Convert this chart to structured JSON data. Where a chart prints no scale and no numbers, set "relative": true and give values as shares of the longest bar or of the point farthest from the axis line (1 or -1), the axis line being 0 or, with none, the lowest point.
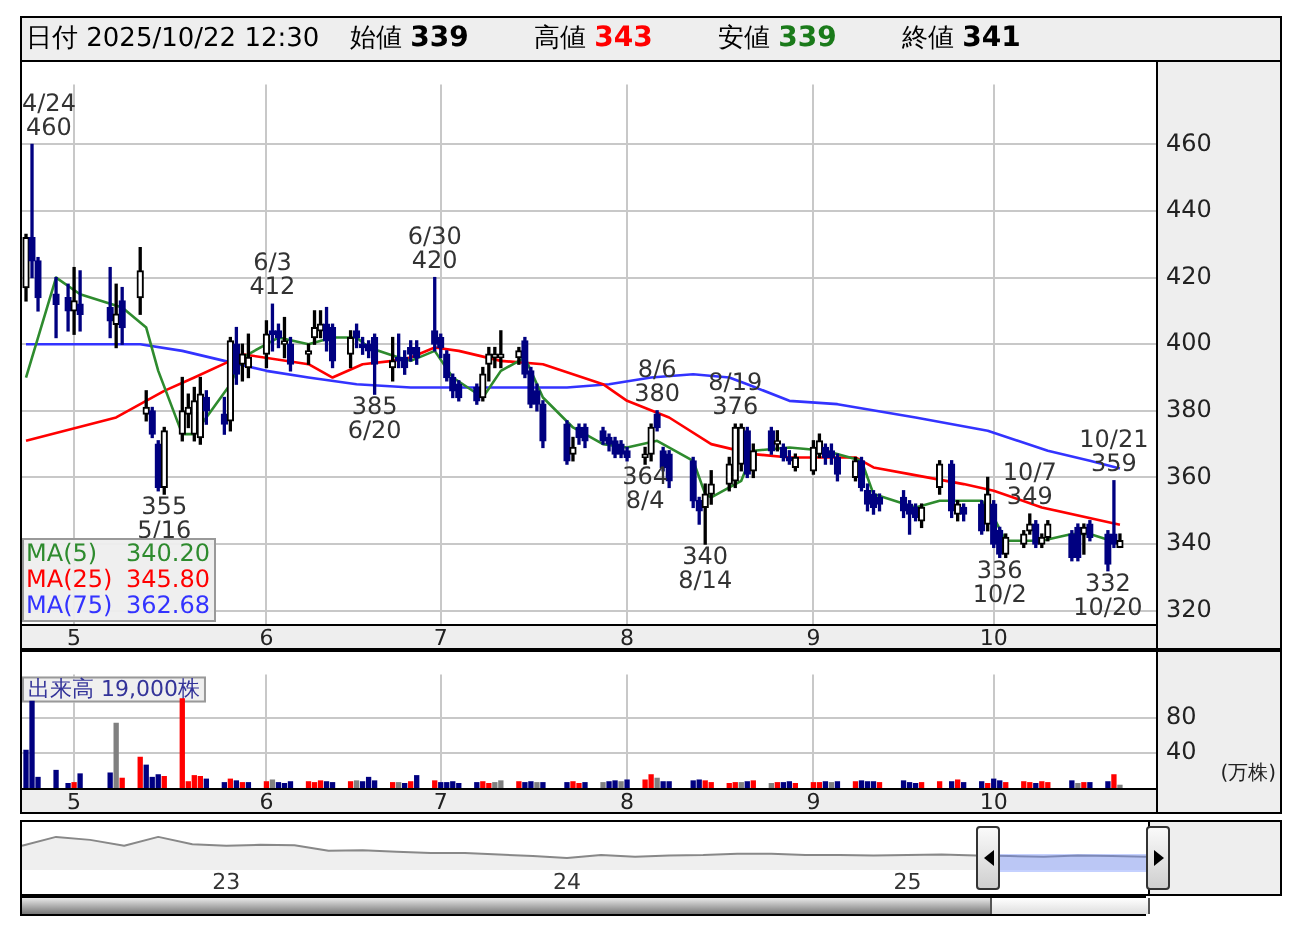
{
  "chart_data": [
    {
      "type": "candlestick",
      "x": [
        "2025-04-23",
        "2025-04-24",
        "2025-04-25",
        "2025-04-28",
        "2025-04-30",
        "2025-05-01",
        "2025-05-02",
        "2025-05-07",
        "2025-05-08",
        "2025-05-09",
        "2025-05-12",
        "2025-05-13",
        "2025-05-14",
        "2025-05-15",
        "2025-05-16",
        "2025-05-19",
        "2025-05-20",
        "2025-05-21",
        "2025-05-22",
        "2025-05-23",
        "2025-05-26",
        "2025-05-27",
        "2025-05-28",
        "2025-05-29",
        "2025-05-30",
        "2025-06-02",
        "2025-06-03",
        "2025-06-04",
        "2025-06-05",
        "2025-06-06",
        "2025-06-09",
        "2025-06-10",
        "2025-06-11",
        "2025-06-12",
        "2025-06-13",
        "2025-06-16",
        "2025-06-17",
        "2025-06-18",
        "2025-06-19",
        "2025-06-20",
        "2025-06-23",
        "2025-06-24",
        "2025-06-25",
        "2025-06-26",
        "2025-06-27",
        "2025-06-30",
        "2025-07-01",
        "2025-07-02",
        "2025-07-03",
        "2025-07-04",
        "2025-07-07",
        "2025-07-08",
        "2025-07-09",
        "2025-07-10",
        "2025-07-11",
        "2025-07-14",
        "2025-07-15",
        "2025-07-16",
        "2025-07-17",
        "2025-07-18",
        "2025-07-22",
        "2025-07-23",
        "2025-07-24",
        "2025-07-25",
        "2025-07-28",
        "2025-07-29",
        "2025-07-30",
        "2025-07-31",
        "2025-08-01",
        "2025-08-04",
        "2025-08-05",
        "2025-08-06",
        "2025-08-07",
        "2025-08-08",
        "2025-08-12",
        "2025-08-13",
        "2025-08-14",
        "2025-08-15",
        "2025-08-18",
        "2025-08-19",
        "2025-08-20",
        "2025-08-21",
        "2025-08-22",
        "2025-08-25",
        "2025-08-26",
        "2025-08-27",
        "2025-08-28",
        "2025-08-29",
        "2025-09-01",
        "2025-09-02",
        "2025-09-03",
        "2025-09-04",
        "2025-09-05",
        "2025-09-08",
        "2025-09-09",
        "2025-09-10",
        "2025-09-11",
        "2025-09-12",
        "2025-09-16",
        "2025-09-17",
        "2025-09-18",
        "2025-09-19",
        "2025-09-22",
        "2025-09-24",
        "2025-09-25",
        "2025-09-26",
        "2025-09-29",
        "2025-09-30",
        "2025-10-01",
        "2025-10-02",
        "2025-10-03",
        "2025-10-06",
        "2025-10-07",
        "2025-10-08",
        "2025-10-09",
        "2025-10-10",
        "2025-10-14",
        "2025-10-15",
        "2025-10-16",
        "2025-10-17",
        "2025-10-20",
        "2025-10-21",
        "2025-10-22"
      ],
      "ohlc": [
        [
          417,
          433,
          413,
          432
        ],
        [
          432,
          460,
          420,
          425
        ],
        [
          425,
          426,
          410,
          414
        ],
        [
          415,
          420,
          402,
          412
        ],
        [
          414,
          418,
          404,
          410
        ],
        [
          410,
          423,
          403,
          413
        ],
        [
          412,
          422,
          404,
          409
        ],
        [
          411,
          423,
          402,
          407
        ],
        [
          406,
          418,
          399,
          409
        ],
        [
          413,
          417,
          400,
          405
        ],
        [
          414,
          429,
          409,
          422
        ],
        [
          379,
          386,
          377,
          381
        ],
        [
          380,
          381,
          372,
          373
        ],
        [
          370,
          371,
          356,
          357
        ],
        [
          357,
          375,
          355,
          374
        ],
        [
          373,
          390,
          371,
          380
        ],
        [
          379,
          385,
          375,
          381
        ],
        [
          373,
          387,
          371,
          383
        ],
        [
          372,
          390,
          370,
          385
        ],
        [
          384,
          386,
          376,
          380
        ],
        [
          379,
          384,
          373,
          376
        ],
        [
          377,
          402,
          374,
          401
        ],
        [
          400,
          405,
          388,
          391
        ],
        [
          394,
          400,
          389,
          397
        ],
        [
          393,
          403,
          390,
          396
        ],
        [
          397,
          407,
          393,
          403
        ],
        [
          404,
          412,
          398,
          403
        ],
        [
          404,
          406,
          399,
          402
        ],
        [
          400,
          408,
          396,
          401
        ],
        [
          400,
          402,
          392,
          394
        ],
        [
          397,
          400,
          394,
          398
        ],
        [
          402,
          410,
          400,
          405
        ],
        [
          404,
          410,
          402,
          406
        ],
        [
          406,
          411,
          398,
          401
        ],
        [
          405,
          406,
          393,
          395
        ],
        [
          397,
          404,
          393,
          402
        ],
        [
          404,
          406,
          399,
          402
        ],
        [
          400,
          402,
          397,
          399
        ],
        [
          400,
          401,
          396,
          398
        ],
        [
          402,
          403,
          385,
          394
        ],
        [
          393,
          402,
          389,
          395
        ],
        [
          396,
          403,
          393,
          395
        ],
        [
          396,
          398,
          391,
          393
        ],
        [
          399,
          401,
          395,
          397
        ],
        [
          399,
          401,
          394,
          396
        ],
        [
          404,
          420,
          398,
          400
        ],
        [
          402,
          403,
          396,
          399
        ],
        [
          397,
          398,
          389,
          390
        ],
        [
          390,
          391,
          384,
          386
        ],
        [
          388,
          389,
          383,
          384
        ],
        [
          387,
          388,
          382,
          383
        ],
        [
          384,
          393,
          383,
          391
        ],
        [
          394,
          399,
          389,
          397
        ],
        [
          396,
          399,
          393,
          397
        ],
        [
          396,
          404,
          393,
          397
        ],
        [
          396,
          399,
          394,
          398
        ],
        [
          401,
          402,
          390,
          391
        ],
        [
          392,
          393,
          381,
          382
        ],
        [
          386,
          388,
          380,
          382
        ],
        [
          382,
          383,
          369,
          371
        ],
        [
          376,
          377,
          364,
          365
        ],
        [
          367,
          372,
          365,
          369
        ],
        [
          375,
          376,
          370,
          372
        ],
        [
          375,
          376,
          369,
          371
        ],
        [
          374,
          375,
          370,
          371
        ],
        [
          372,
          373,
          368,
          370
        ],
        [
          371,
          372,
          366,
          367
        ],
        [
          370,
          371,
          366,
          367
        ],
        [
          368,
          369,
          365,
          366
        ],
        [
          366,
          369,
          364,
          367
        ],
        [
          367,
          376,
          365,
          375
        ],
        [
          379,
          380,
          374,
          375
        ],
        [
          368,
          369,
          362,
          363
        ],
        [
          367,
          368,
          357,
          359
        ],
        [
          365,
          366,
          351,
          353
        ],
        [
          353,
          354,
          346,
          350
        ],
        [
          351,
          358,
          340,
          355
        ],
        [
          355,
          362,
          352,
          358
        ],
        [
          358,
          366,
          356,
          364
        ],
        [
          359,
          376,
          357,
          375
        ],
        [
          364,
          376,
          362,
          375
        ],
        [
          374,
          375,
          360,
          361
        ],
        [
          362,
          370,
          360,
          368
        ],
        [
          374,
          375,
          367,
          368
        ],
        [
          370,
          374,
          368,
          371
        ],
        [
          369,
          370,
          365,
          366
        ],
        [
          366,
          368,
          364,
          365
        ],
        [
          363,
          367,
          362,
          366
        ],
        [
          362,
          371,
          361,
          369
        ],
        [
          367,
          373,
          366,
          371
        ],
        [
          369,
          370,
          364,
          366
        ],
        [
          368,
          370,
          364,
          366
        ],
        [
          366,
          367,
          359,
          361
        ],
        [
          360,
          366,
          359,
          365
        ],
        [
          365,
          366,
          356,
          357
        ],
        [
          356,
          358,
          350,
          352
        ],
        [
          355,
          356,
          349,
          351
        ],
        [
          354,
          355,
          350,
          352
        ],
        [
          354,
          356,
          348,
          350
        ],
        [
          352,
          353,
          343,
          349
        ],
        [
          351,
          352,
          347,
          348
        ],
        [
          347,
          352,
          345,
          351
        ],
        [
          357,
          365,
          355,
          364
        ],
        [
          364,
          365,
          348,
          350
        ],
        [
          349,
          353,
          347,
          352
        ],
        [
          351,
          352,
          347,
          349
        ],
        [
          352,
          353,
          343,
          344
        ],
        [
          346,
          360,
          344,
          355
        ],
        [
          352,
          353,
          339,
          340
        ],
        [
          344,
          345,
          336,
          337
        ],
        [
          337,
          343,
          336,
          342
        ],
        [
          340,
          344,
          339,
          343
        ],
        [
          344,
          349,
          343,
          346
        ],
        [
          346,
          347,
          339,
          340
        ],
        [
          340,
          343,
          339,
          342
        ],
        [
          342,
          347,
          341,
          346
        ],
        [
          343,
          344,
          335,
          336
        ],
        [
          345,
          346,
          335,
          336
        ],
        [
          343,
          346,
          337,
          345
        ],
        [
          346,
          347,
          341,
          342
        ],
        [
          343,
          344,
          332,
          334
        ],
        [
          343,
          359,
          339,
          340
        ],
        [
          339,
          343,
          339,
          341
        ]
      ],
      "series": [
        {
          "type": "line",
          "name": "MA(5) 340.20",
          "color": "#2e8b2e",
          "x": [
            "2025-04-23",
            "2025-04-28",
            "2025-05-02",
            "2025-05-09",
            "2025-05-13",
            "2025-05-15",
            "2025-05-19",
            "2025-05-21",
            "2025-05-23",
            "2025-05-27",
            "2025-05-29",
            "2025-06-04",
            "2025-06-09",
            "2025-06-13",
            "2025-06-17",
            "2025-06-19",
            "2025-06-24",
            "2025-06-26",
            "2025-06-30",
            "2025-07-03",
            "2025-07-08",
            "2025-07-11",
            "2025-07-15",
            "2025-07-18",
            "2025-07-23",
            "2025-07-28",
            "2025-08-01",
            "2025-08-06",
            "2025-08-12",
            "2025-08-14",
            "2025-08-15",
            "2025-08-20",
            "2025-08-22",
            "2025-08-28",
            "2025-09-03",
            "2025-09-09",
            "2025-09-11",
            "2025-09-18",
            "2025-09-22",
            "2025-09-29",
            "2025-10-01",
            "2025-10-03",
            "2025-10-09",
            "2025-10-14",
            "2025-10-17",
            "2025-10-22"
          ],
          "values": [
            390,
            420,
            415,
            411,
            405,
            392,
            373,
            373,
            378,
            388,
            396,
            402,
            400,
            402,
            402,
            399,
            396,
            395,
            398,
            390,
            384,
            392,
            396,
            384,
            375,
            370,
            369,
            371,
            365,
            355,
            354,
            359,
            368,
            369,
            368,
            365,
            355,
            351,
            353,
            353,
            348,
            341,
            341,
            343,
            343,
            340.2
          ]
        },
        {
          "type": "line",
          "name": "MA(25) 345.80",
          "color": "#ff0000",
          "x": [
            "2025-04-23",
            "2025-05-08",
            "2025-05-16",
            "2025-05-21",
            "2025-05-27",
            "2025-05-29",
            "2025-06-09",
            "2025-06-13",
            "2025-06-18",
            "2025-06-23",
            "2025-06-26",
            "2025-06-30",
            "2025-07-04",
            "2025-07-11",
            "2025-07-18",
            "2025-07-28",
            "2025-08-01",
            "2025-08-08",
            "2025-08-15",
            "2025-08-22",
            "2025-08-28",
            "2025-09-08",
            "2025-09-11",
            "2025-09-17",
            "2025-09-26",
            "2025-10-01",
            "2025-10-09",
            "2025-10-22"
          ],
          "values": [
            371,
            378,
            386,
            390,
            395,
            397,
            394,
            390,
            394,
            395,
            396,
            399,
            398,
            395,
            394,
            388,
            383,
            378,
            370,
            367,
            366,
            366,
            363,
            361,
            358,
            356,
            351,
            345.8
          ]
        },
        {
          "type": "line",
          "name": "MA(75) 362.68",
          "color": "#3333ff",
          "x": [
            "2025-04-23",
            "2025-05-12",
            "2025-05-19",
            "2025-05-26",
            "2025-06-02",
            "2025-06-09",
            "2025-06-17",
            "2025-06-26",
            "2025-07-07",
            "2025-07-22",
            "2025-07-29",
            "2025-08-05",
            "2025-08-12",
            "2025-08-18",
            "2025-08-21",
            "2025-08-28",
            "2025-09-05",
            "2025-09-18",
            "2025-09-30",
            "2025-10-10",
            "2025-10-17",
            "2025-10-22"
          ],
          "values": [
            400,
            400,
            398,
            395,
            392,
            390,
            388,
            387,
            387,
            387,
            388,
            390,
            391,
            390,
            388,
            383,
            382,
            378,
            374,
            368,
            365,
            362.7
          ]
        }
      ],
      "xlim": [
        "2025-04-22",
        "2025-10-28"
      ],
      "xticks": [
        {
          "value": "2025-05-01",
          "label": "5"
        },
        {
          "value": "2025-06-02",
          "label": "6"
        },
        {
          "value": "2025-07-01",
          "label": "7"
        },
        {
          "value": "2025-08-01",
          "label": "8"
        },
        {
          "value": "2025-09-01",
          "label": "9"
        },
        {
          "value": "2025-10-01",
          "label": "10"
        }
      ],
      "ylim": [
        316,
        478
      ],
      "yticks": [
        320,
        340,
        360,
        380,
        400,
        420,
        440,
        460
      ],
      "grid": true,
      "legend": "bottom left",
      "annotations": [
        "日付 2025/10/22 12:30",
        "始値 339",
        "高値 343",
        "安値 339",
        "終値 341",
        {
          "text": "4/24\n460",
          "x": "2025-04-24",
          "y": 460
        },
        {
          "text": "355\n5/16",
          "x": "2025-05-16",
          "y": 355
        },
        {
          "text": "6/3\n412",
          "x": "2025-06-03",
          "y": 412
        },
        {
          "text": "385\n6/20",
          "x": "2025-06-20",
          "y": 385
        },
        {
          "text": "6/30\n420",
          "x": "2025-06-30",
          "y": 420
        },
        {
          "text": "364\n8/4",
          "x": "2025-08-04",
          "y": 364
        },
        {
          "text": "8/6\n380",
          "x": "2025-08-06",
          "y": 380
        },
        {
          "text": "340\n8/14",
          "x": "2025-08-14",
          "y": 340
        },
        {
          "text": "8/19\n376",
          "x": "2025-08-19",
          "y": 376
        },
        {
          "text": "336\n10/2",
          "x": "2025-10-02",
          "y": 336
        },
        {
          "text": "10/7\n349",
          "x": "2025-10-07",
          "y": 349
        },
        {
          "text": "332\n10/20",
          "x": "2025-10-20",
          "y": 332
        },
        {
          "text": "10/21\n359",
          "x": "2025-10-21",
          "y": 359
        }
      ]
    },
    {
      "type": "bar",
      "x": [
        "2025-04-23",
        "2025-04-24",
        "2025-04-25",
        "2025-04-28",
        "2025-04-30",
        "2025-05-01",
        "2025-05-02",
        "2025-05-07",
        "2025-05-08",
        "2025-05-09",
        "2025-05-12",
        "2025-05-13",
        "2025-05-14",
        "2025-05-15",
        "2025-05-16",
        "2025-05-19",
        "2025-05-20",
        "2025-05-21",
        "2025-05-22",
        "2025-05-23",
        "2025-05-26",
        "2025-05-27",
        "2025-05-28",
        "2025-05-29",
        "2025-05-30",
        "2025-06-02",
        "2025-06-03",
        "2025-06-04",
        "2025-06-05",
        "2025-06-06",
        "2025-06-09",
        "2025-06-10",
        "2025-06-11",
        "2025-06-12",
        "2025-06-13",
        "2025-06-16",
        "2025-06-17",
        "2025-06-18",
        "2025-06-19",
        "2025-06-20",
        "2025-06-23",
        "2025-06-24",
        "2025-06-25",
        "2025-06-26",
        "2025-06-27",
        "2025-06-30",
        "2025-07-01",
        "2025-07-02",
        "2025-07-03",
        "2025-07-04",
        "2025-07-07",
        "2025-07-08",
        "2025-07-09",
        "2025-07-10",
        "2025-07-11",
        "2025-07-14",
        "2025-07-15",
        "2025-07-16",
        "2025-07-17",
        "2025-07-18",
        "2025-07-22",
        "2025-07-23",
        "2025-07-24",
        "2025-07-25",
        "2025-07-28",
        "2025-07-29",
        "2025-07-30",
        "2025-07-31",
        "2025-08-01",
        "2025-08-04",
        "2025-08-05",
        "2025-08-06",
        "2025-08-07",
        "2025-08-08",
        "2025-08-12",
        "2025-08-13",
        "2025-08-14",
        "2025-08-15",
        "2025-08-18",
        "2025-08-19",
        "2025-08-20",
        "2025-08-21",
        "2025-08-22",
        "2025-08-25",
        "2025-08-26",
        "2025-08-27",
        "2025-08-28",
        "2025-08-29",
        "2025-09-01",
        "2025-09-02",
        "2025-09-03",
        "2025-09-04",
        "2025-09-05",
        "2025-09-08",
        "2025-09-09",
        "2025-09-10",
        "2025-09-11",
        "2025-09-12",
        "2025-09-16",
        "2025-09-17",
        "2025-09-18",
        "2025-09-19",
        "2025-09-22",
        "2025-09-24",
        "2025-09-25",
        "2025-09-26",
        "2025-09-29",
        "2025-09-30",
        "2025-10-01",
        "2025-10-02",
        "2025-10-03",
        "2025-10-06",
        "2025-10-07",
        "2025-10-08",
        "2025-10-09",
        "2025-10-10",
        "2025-10-14",
        "2025-10-15",
        "2025-10-16",
        "2025-10-17",
        "2025-10-20",
        "2025-10-21",
        "2025-10-22"
      ],
      "values": [
        43,
        99,
        12,
        20,
        5,
        6,
        16,
        17,
        74,
        11,
        35,
        26,
        12,
        15,
        13,
        102,
        7,
        14,
        13,
        10,
        6,
        10,
        8,
        6,
        6,
        7,
        9,
        6,
        5,
        7,
        7,
        6,
        8,
        7,
        6,
        7,
        8,
        7,
        12,
        8,
        6,
        6,
        5,
        7,
        14,
        8,
        6,
        6,
        7,
        5,
        6,
        7,
        5,
        6,
        8,
        7,
        6,
        7,
        6,
        6,
        6,
        7,
        5,
        6,
        6,
        7,
        8,
        7,
        9,
        9,
        15,
        11,
        7,
        7,
        8,
        9,
        8,
        6,
        5,
        6,
        6,
        7,
        8,
        5,
        6,
        6,
        7,
        5,
        6,
        6,
        7,
        6,
        7,
        7,
        8,
        7,
        7,
        6,
        8,
        6,
        5,
        6,
        7,
        7,
        9,
        6,
        7,
        5,
        10,
        8,
        6,
        7,
        6,
        5,
        7,
        6,
        8,
        5,
        6,
        6,
        7,
        15,
        3
      ],
      "colors": [
        "#000080",
        "#000080",
        "#000080",
        "#000080",
        "#000080",
        "#ff0000",
        "#000080",
        "#000080",
        "#808080",
        "#ff0000",
        "#ff0000",
        "#000080",
        "#000080",
        "#000080",
        "#ff0000",
        "#ff0000",
        "#ff0000",
        "#ff0000",
        "#ff0000",
        "#000080",
        "#000080",
        "#ff0000",
        "#000080",
        "#ff0000",
        "#000080",
        "#ff0000",
        "#808080",
        "#000080",
        "#000080",
        "#000080",
        "#ff0000",
        "#ff0000",
        "#ff0000",
        "#000080",
        "#000080",
        "#ff0000",
        "#808080",
        "#000080",
        "#000080",
        "#000080",
        "#ff0000",
        "#808080",
        "#000080",
        "#ff0000",
        "#000080",
        "#ff0000",
        "#000080",
        "#000080",
        "#000080",
        "#000080",
        "#000080",
        "#ff0000",
        "#ff0000",
        "#808080",
        "#808080",
        "#ff0000",
        "#000080",
        "#000080",
        "#808080",
        "#000080",
        "#000080",
        "#ff0000",
        "#ff0000",
        "#000080",
        "#808080",
        "#000080",
        "#000080",
        "#808080",
        "#000080",
        "#ff0000",
        "#ff0000",
        "#808080",
        "#000080",
        "#000080",
        "#000080",
        "#000080",
        "#ff0000",
        "#ff0000",
        "#ff0000",
        "#ff0000",
        "#808080",
        "#000080",
        "#ff0000",
        "#808080",
        "#ff0000",
        "#000080",
        "#000080",
        "#ff0000",
        "#ff0000",
        "#ff0000",
        "#000080",
        "#808080",
        "#000080",
        "#ff0000",
        "#000080",
        "#000080",
        "#000080",
        "#ff0000",
        "#000080",
        "#000080",
        "#000080",
        "#ff0000",
        "#ff0000",
        "#000080",
        "#ff0000",
        "#000080",
        "#000080",
        "#ff0000",
        "#000080",
        "#000080",
        "#ff0000",
        "#ff0000",
        "#ff0000",
        "#000080",
        "#ff0000",
        "#ff0000",
        "#000080",
        "#808080",
        "#ff0000",
        "#000080",
        "#000080",
        "#ff0000",
        "#808080"
      ],
      "xlim": [
        "2025-04-22",
        "2025-10-28"
      ],
      "xticks": [
        {
          "value": "2025-05-01",
          "label": "5"
        },
        {
          "value": "2025-06-02",
          "label": "6"
        },
        {
          "value": "2025-07-01",
          "label": "7"
        },
        {
          "value": "2025-08-01",
          "label": "8"
        },
        {
          "value": "2025-09-01",
          "label": "9"
        },
        {
          "value": "2025-10-01",
          "label": "10"
        }
      ],
      "ylim": [
        0,
        130
      ],
      "yticks": [
        40,
        80
      ],
      "ylabel": "(万株)",
      "grid": true,
      "annotations": [
        "出来高 19,000株"
      ]
    },
    {
      "type": "area",
      "relative": true,
      "color": "#888888",
      "categories": [
        null,
        null,
        null,
        null,
        null,
        null,
        "23",
        null,
        null,
        null,
        null,
        null,
        null,
        null,
        null,
        null,
        "24",
        null,
        null,
        null,
        null,
        null,
        null,
        null,
        null,
        null,
        "25",
        null,
        null,
        null,
        null,
        null,
        null,
        null
      ],
      "values": [
        0.73,
        1,
        0.91,
        0.73,
        1,
        0.78,
        0.73,
        0.76,
        0.75,
        0.58,
        0.6,
        0.55,
        0.51,
        0.51,
        0.47,
        0.42,
        0.36,
        0.45,
        0.4,
        0.44,
        0.45,
        0.49,
        0.49,
        0.45,
        0.45,
        0.44,
        0.45,
        0.47,
        0.44,
        0.42,
        0.4,
        0.44,
        0.42,
        0.4
      ]
    }
  ]
}
